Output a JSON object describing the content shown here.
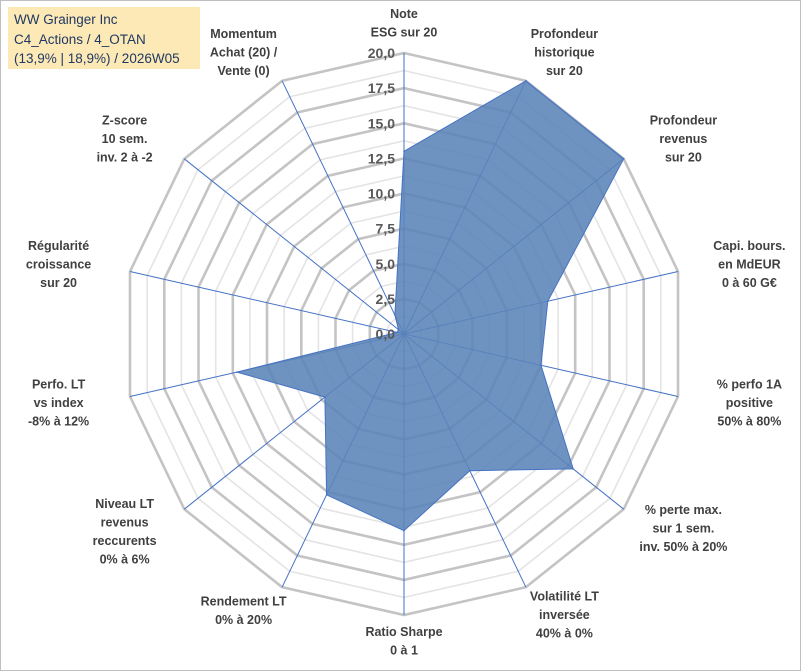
{
  "title_box": {
    "line1": "WW Grainger Inc",
    "line2": "C4_Actions / 4_OTAN",
    "line3": "(13,9% | 18,9%) / 2026W05"
  },
  "colors": {
    "fill": "#5b84b8",
    "stroke": "#4472c4",
    "grid": "#d0d0d0",
    "spoke": "#4472c4",
    "title_bg": "#fde9b5",
    "title_text": "#1f3864"
  },
  "chart_data": {
    "type": "radar",
    "r_range": [
      0,
      20
    ],
    "ticks": [
      {
        "value": 0,
        "label": "0,0"
      },
      {
        "value": 2.5,
        "label": "2,5"
      },
      {
        "value": 5,
        "label": "5,0"
      },
      {
        "value": 7.5,
        "label": "7,5"
      },
      {
        "value": 10,
        "label": "10,0"
      },
      {
        "value": 12.5,
        "label": "12,5"
      },
      {
        "value": 15,
        "label": "15,0"
      },
      {
        "value": 17.5,
        "label": "17,5"
      },
      {
        "value": 20,
        "label": "20,0"
      }
    ],
    "categories": [
      {
        "lines": [
          "Note",
          "ESG sur 20"
        ]
      },
      {
        "lines": [
          "Profondeur",
          "historique",
          "sur 20"
        ]
      },
      {
        "lines": [
          "Profondeur",
          "revenus",
          "sur 20"
        ]
      },
      {
        "lines": [
          "Capi. bours.",
          "en MdEUR",
          "0 à 60 G€"
        ]
      },
      {
        "lines": [
          "% perfo 1A",
          "positive",
          "50% à 80%"
        ]
      },
      {
        "lines": [
          "% perte max.",
          "sur 1 sem.",
          "inv. 50% à 20%"
        ]
      },
      {
        "lines": [
          "Volatilité LT",
          "inversée",
          "40% à 0%"
        ]
      },
      {
        "lines": [
          "Ratio Sharpe",
          "0 à 1"
        ]
      },
      {
        "lines": [
          "Rendement LT",
          "0% à 20%"
        ]
      },
      {
        "lines": [
          "Niveau LT",
          "revenus",
          "reccurents",
          "0% à 6%"
        ]
      },
      {
        "lines": [
          "Perfo. LT",
          "vs index",
          "-8% à 12%"
        ]
      },
      {
        "lines": [
          "Régularité",
          "croissance",
          "sur 20"
        ]
      },
      {
        "lines": [
          "Z-score",
          "10 sem.",
          "inv. 2 à -2"
        ]
      },
      {
        "lines": [
          "Momentum",
          "Achat (20) /",
          "Vente (0)"
        ]
      }
    ],
    "series": [
      {
        "name": "WW Grainger Inc",
        "values": [
          13,
          20,
          20,
          10.5,
          10,
          15.4,
          10.8,
          14,
          12.7,
          7.2,
          12.2,
          0.5,
          0.5,
          1.5
        ]
      }
    ]
  }
}
